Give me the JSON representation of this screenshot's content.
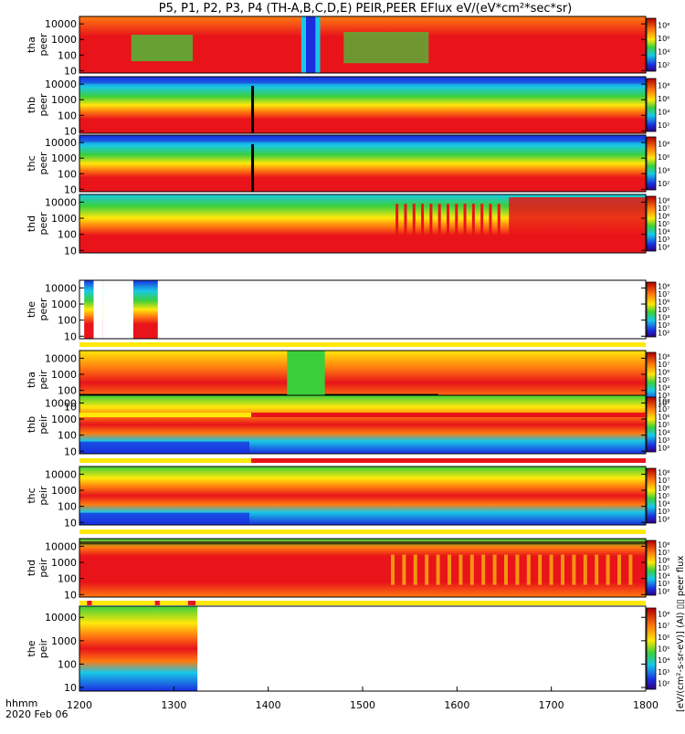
{
  "chart_data": {
    "type": "heatmap",
    "title": "P5, P1, P2, P3, P4 (TH-A,B,C,D,E) PEIR,PEER EFlux eV/(eV*cm²*sec*sr)",
    "x_axis": {
      "label_line1": "hhmm",
      "label_line2": "2020 Feb 06",
      "range": [
        1200,
        1800
      ],
      "ticks": [
        "1200",
        "1300",
        "1400",
        "1500",
        "1600",
        "1700",
        "1800"
      ]
    },
    "y_axis": {
      "scale": "log",
      "range_eV": [
        7,
        30000
      ],
      "ticks": [
        "10",
        "100",
        "1000",
        "10000"
      ]
    },
    "colorbar_units": "[eV/(cm²-s-sr-eV)]",
    "colorbar_label": "[eV/(cm²-s-sr-eV)] (Al) ▯▯ peer flux",
    "colorbar_ticks_full": [
      "10⁸",
      "10⁷",
      "10⁶",
      "10⁵",
      "10⁴",
      "10³",
      "10²"
    ],
    "colorbar_ticks_short": [
      "10⁸",
      "10⁶",
      "10⁴",
      "10²"
    ],
    "panels": [
      {
        "probe": "tha",
        "species": "peer",
        "label_top": "tha",
        "label_bottom": "peer",
        "time_coverage": [
          1200,
          1800
        ]
      },
      {
        "probe": "thb",
        "species": "peer",
        "label_top": "thb",
        "label_bottom": "peer",
        "time_coverage": [
          1200,
          1800
        ]
      },
      {
        "probe": "thc",
        "species": "peer",
        "label_top": "thc",
        "label_bottom": "peer",
        "time_coverage": [
          1200,
          1800
        ]
      },
      {
        "probe": "thd",
        "species": "peer",
        "label_top": "thd",
        "label_bottom": "peer",
        "time_coverage": [
          1200,
          1800
        ]
      },
      {
        "probe": "the",
        "species": "peer",
        "label_top": "the",
        "label_bottom": "peer",
        "time_coverage": [
          1205,
          1283
        ]
      },
      {
        "probe": "tha",
        "species": "peir",
        "label_top": "tha",
        "label_bottom": "peir",
        "time_coverage": [
          1200,
          1800
        ]
      },
      {
        "probe": "thb",
        "species": "peir",
        "label_top": "thb",
        "label_bottom": "peir",
        "time_coverage": [
          1200,
          1800
        ]
      },
      {
        "probe": "thc",
        "species": "peir",
        "label_top": "thc",
        "label_bottom": "peir",
        "time_coverage": [
          1200,
          1800
        ]
      },
      {
        "probe": "thd",
        "species": "peir",
        "label_top": "thd",
        "label_bottom": "peir",
        "time_coverage": [
          1200,
          1800
        ]
      },
      {
        "probe": "the",
        "species": "peir",
        "label_top": "the",
        "label_bottom": "peir",
        "time_coverage": [
          1200,
          1325
        ]
      }
    ]
  },
  "colors": {
    "red": "#e8141a",
    "orange": "#ff7a10",
    "yellow": "#ffe80a",
    "green": "#3ccf3c",
    "cyan": "#19c8e6",
    "blue": "#1a2ee0",
    "black": "#000000",
    "white": "#ffffff"
  }
}
